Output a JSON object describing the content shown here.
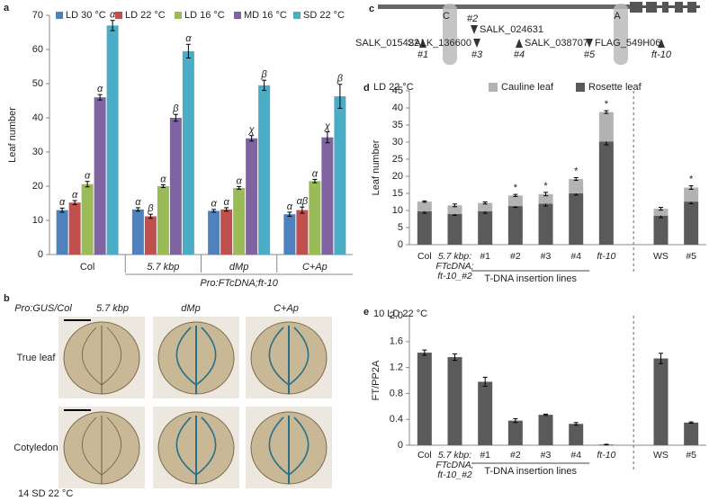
{
  "chart_data": [
    {
      "type": "grouped_bar",
      "panel": "a",
      "ylabel": "Leaf number",
      "categories": [
        "Col",
        "5.7 kbp",
        "dMp",
        "C+Ap"
      ],
      "group_label": "Pro:FTcDNA;ft-10",
      "ylim": [
        0,
        70
      ],
      "yticks": [
        0,
        10,
        20,
        30,
        40,
        50,
        60,
        70
      ],
      "series": [
        {
          "name": "LD 30 °C",
          "color": "#4f81bd",
          "values": [
            13,
            13.2,
            12.8,
            11.8
          ],
          "errors": [
            0.6,
            0.5,
            0.4,
            0.6
          ],
          "annotations": [
            "α",
            "α",
            "α",
            "α"
          ]
        },
        {
          "name": "LD 22 °C",
          "color": "#c0504d",
          "values": [
            15.2,
            11.2,
            13.2,
            13
          ],
          "errors": [
            0.6,
            0.6,
            0.5,
            0.9
          ],
          "annotations": [
            "α",
            "β",
            "α",
            "αβ"
          ]
        },
        {
          "name": "LD 16 °C",
          "color": "#9bbb59",
          "values": [
            20.6,
            20,
            19.5,
            21.5
          ],
          "errors": [
            0.8,
            0.4,
            0.4,
            0.5
          ],
          "annotations": [
            "α",
            "α",
            "α",
            "α"
          ]
        },
        {
          "name": "MD 16 °C",
          "color": "#8064a2",
          "values": [
            46,
            40,
            34,
            34.3
          ],
          "errors": [
            0.8,
            1,
            0.8,
            1.6
          ],
          "annotations": [
            "α",
            "β",
            "χ",
            "χ"
          ]
        },
        {
          "name": "SD 22 °C",
          "color": "#4bacc6",
          "values": [
            67,
            59.5,
            49.5,
            46.3
          ],
          "errors": [
            1.5,
            2,
            1.5,
            3.5
          ],
          "annotations": [
            "α",
            "α",
            "β",
            "β"
          ]
        }
      ]
    },
    {
      "type": "stacked_bar",
      "panel": "d",
      "title": "LD 22 °C",
      "ylabel": "Leaf number",
      "categories": [
        "Col",
        "5.7 kbp:\nFTcDNA;\nft-10_#2",
        "#1",
        "#2",
        "#3",
        "#4",
        "ft-10",
        "WS",
        "#5"
      ],
      "group_label": "T-DNA insertion lines",
      "ylim": [
        0,
        45
      ],
      "yticks": [
        0,
        5,
        10,
        15,
        20,
        25,
        30,
        35,
        40,
        45
      ],
      "annotations": [
        null,
        null,
        null,
        "*",
        "*",
        "*",
        "*",
        null,
        "*"
      ],
      "series": [
        {
          "name": "Cauline leaf",
          "color": "#b3b3b3",
          "values": [
            2.8,
            2.5,
            2.4,
            3.1,
            2.8,
            4.2,
            8.6,
            2,
            4.1
          ],
          "errors": [
            0.2,
            0.4,
            0.3,
            0.3,
            0.5,
            0.4,
            0.4,
            0.4,
            0.5
          ]
        },
        {
          "name": "Rosette leaf",
          "color": "#5a5a5a",
          "values": [
            9.8,
            9,
            9.8,
            11.3,
            12,
            15,
            30.2,
            8.5,
            12.6
          ],
          "errors": [
            0.6,
            0.4,
            0.6,
            0.4,
            0.7,
            0.5,
            1,
            0.6,
            0.6
          ]
        }
      ]
    },
    {
      "type": "bar",
      "panel": "e",
      "title": "10 LD 22 °C",
      "ylabel": "FT/PP2A",
      "categories": [
        "Col",
        "5.7 kbp:\nFTcDNA;\nft-10_#2",
        "#1",
        "#2",
        "#3",
        "#4",
        "ft-10",
        "WS",
        "#5"
      ],
      "group_label": "T-DNA insertion lines",
      "color": "#5a5a5a",
      "ylim": [
        0,
        2
      ],
      "yticks": [
        0,
        0.4,
        0.8,
        1.2,
        1.6,
        {
          "value": 2,
          "label": "2.0"
        }
      ],
      "values": [
        1.43,
        1.36,
        0.98,
        0.38,
        0.47,
        0.33,
        0.01,
        1.34,
        0.35
      ],
      "errors": [
        0.04,
        0.05,
        0.07,
        0.03,
        0.01,
        0.02,
        0.005,
        0.08,
        0.01
      ]
    }
  ],
  "image_panel": {
    "panel": "b",
    "columns": [
      "Pro:GUS/Col",
      "5.7 kbp",
      "dMp",
      "C+Ap"
    ],
    "rows": [
      "True leaf",
      "Cotyledon"
    ],
    "condition": "14 SD 22 °C"
  },
  "gene_diagram": {
    "panel": "c",
    "regions": [
      "C",
      "A"
    ],
    "insertions": [
      {
        "id": "#1",
        "name": "SALK_015422"
      },
      {
        "id": "#2",
        "name": "SALK_024631"
      },
      {
        "id": "#3",
        "name": "SALK_136600"
      },
      {
        "id": "#4",
        "name": "SALK_038707"
      },
      {
        "id": "#5",
        "name": "FLAG_549H06"
      },
      {
        "id": "ft-10"
      }
    ]
  }
}
